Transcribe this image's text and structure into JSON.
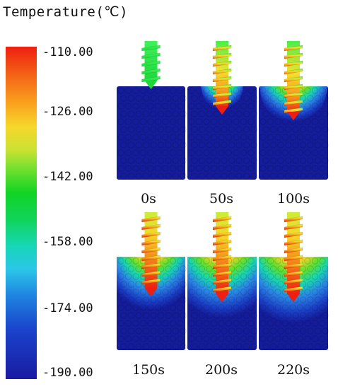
{
  "figure": {
    "title": "Temperature(℃)",
    "scale_labels": [
      "-110.00",
      "-126.00",
      "-142.00",
      "-158.00",
      "-174.00",
      "-190.00"
    ],
    "time_labels": [
      "0s",
      "50s",
      "100s",
      "150s",
      "200s",
      "220s"
    ]
  },
  "colors": {
    "hot": "#ee1f12",
    "warm": "#f99a1c",
    "mid": "#10d424",
    "cool": "#2bc6e9",
    "cold": "#1a1aa2",
    "block": "#141c9a"
  }
}
